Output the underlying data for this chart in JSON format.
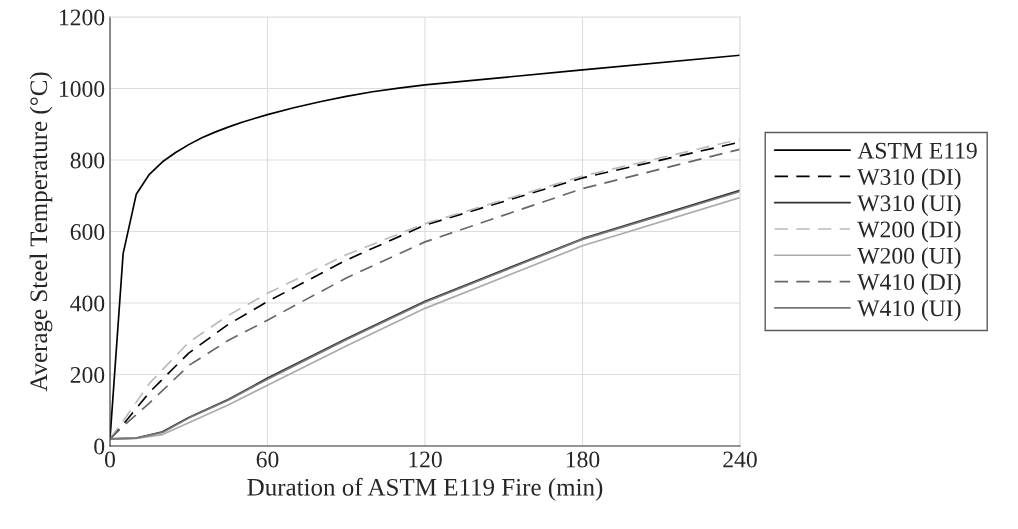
{
  "chart_data": {
    "type": "line",
    "xlabel": "Duration of ASTM E119 Fire (min)",
    "ylabel": "Average Steel Temperature (°C)",
    "xlim": [
      0,
      240
    ],
    "xticks": [
      0,
      60,
      120,
      180,
      240
    ],
    "ylim": [
      0,
      1200
    ],
    "yticks": [
      0,
      200,
      400,
      600,
      800,
      1000,
      1200
    ],
    "grid": true,
    "legend": "right",
    "marker": "none",
    "series": [
      {
        "name": "ASTM E119",
        "color": "#000000",
        "line_style": "solid",
        "x": [
          0,
          5,
          10,
          15,
          20,
          25,
          30,
          35,
          40,
          45,
          50,
          55,
          60,
          70,
          80,
          90,
          100,
          110,
          120,
          180,
          240
        ],
        "values": [
          20,
          538,
          704,
          760,
          795,
          821,
          843,
          862,
          878,
          892,
          905,
          916,
          927,
          946,
          963,
          978,
          991,
          1001,
          1010,
          1052,
          1093
        ]
      },
      {
        "name": "W310 (DI)",
        "color": "#000000",
        "line_style": "dashed",
        "x": [
          0,
          5,
          15,
          30,
          45,
          60,
          90,
          120,
          180,
          240
        ],
        "values": [
          20,
          60,
          150,
          260,
          340,
          404,
          520,
          618,
          750,
          850
        ]
      },
      {
        "name": "W310 (UI)",
        "color": "#333333",
        "line_style": "solid",
        "x": [
          0,
          10,
          20,
          30,
          45,
          60,
          90,
          120,
          180,
          240
        ],
        "values": [
          20,
          22,
          40,
          80,
          130,
          190,
          300,
          405,
          580,
          715
        ]
      },
      {
        "name": "W200 (DI)",
        "color": "#bbbbbb",
        "line_style": "dashed",
        "x": [
          0,
          5,
          15,
          30,
          45,
          60,
          90,
          120,
          180,
          240
        ],
        "values": [
          20,
          70,
          175,
          290,
          365,
          427,
          535,
          622,
          755,
          858
        ]
      },
      {
        "name": "W200 (UI)",
        "color": "#aaaaaa",
        "line_style": "solid",
        "x": [
          0,
          10,
          20,
          30,
          45,
          60,
          90,
          120,
          180,
          240
        ],
        "values": [
          20,
          21,
          32,
          65,
          115,
          170,
          280,
          385,
          560,
          695
        ]
      },
      {
        "name": "W410 (DI)",
        "color": "#666666",
        "line_style": "dashed",
        "x": [
          0,
          5,
          15,
          30,
          45,
          60,
          90,
          120,
          180,
          240
        ],
        "values": [
          20,
          55,
          120,
          225,
          295,
          352,
          470,
          571,
          720,
          830
        ]
      },
      {
        "name": "W410 (UI)",
        "color": "#777777",
        "line_style": "solid",
        "x": [
          0,
          10,
          20,
          30,
          45,
          60,
          90,
          120,
          180,
          240
        ],
        "values": [
          20,
          22,
          38,
          78,
          128,
          187,
          297,
          402,
          578,
          712
        ]
      }
    ]
  }
}
